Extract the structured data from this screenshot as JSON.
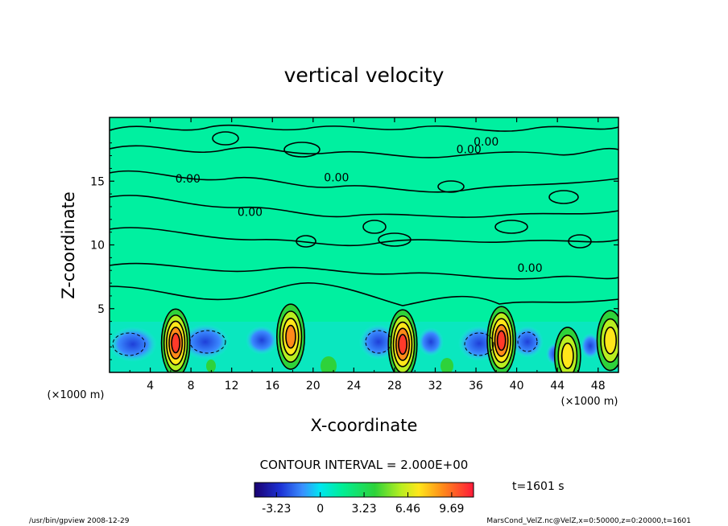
{
  "chart_data": {
    "type": "heatmap",
    "title": "vertical velocity",
    "xlabel": "X-coordinate",
    "ylabel": "Z-coordinate",
    "x_unit": "(×1000 m)",
    "y_unit": "(×1000 m)",
    "xlim": [
      0,
      50
    ],
    "ylim": [
      0,
      20
    ],
    "x_ticks": [
      4,
      8,
      12,
      16,
      20,
      24,
      28,
      32,
      36,
      40,
      44,
      48
    ],
    "y_ticks": [
      5,
      10,
      15
    ],
    "contour_labels": [
      {
        "x": 37.0,
        "z": 18.1,
        "text": "0.00"
      },
      {
        "x": 35.3,
        "z": 17.5,
        "text": "0.00"
      },
      {
        "x": 7.7,
        "z": 15.2,
        "text": "0.00"
      },
      {
        "x": 22.3,
        "z": 15.3,
        "text": "0.00"
      },
      {
        "x": 13.8,
        "z": 12.6,
        "text": "0.00"
      },
      {
        "x": 41.3,
        "z": 8.2,
        "text": "0.00"
      }
    ],
    "updrafts": [
      {
        "x": 6.5,
        "z": 2.3,
        "peak": 9.0
      },
      {
        "x": 17.8,
        "z": 2.8,
        "peak": 8.0
      },
      {
        "x": 28.8,
        "z": 2.2,
        "peak": 9.4
      },
      {
        "x": 38.5,
        "z": 2.5,
        "peak": 9.0
      },
      {
        "x": 45.0,
        "z": 1.3,
        "peak": 5.2
      },
      {
        "x": 49.2,
        "z": 2.5,
        "peak": 6.2
      }
    ],
    "contour_interval_label": "CONTOUR INTERVAL = 2.000E+00",
    "colorbar": {
      "ticks": [
        "-3.23",
        "0",
        "3.23",
        "6.46",
        "9.69"
      ],
      "min": -4.85,
      "max": 11.3
    },
    "time_label": "t=1601 s"
  },
  "footer": {
    "left": "/usr/bin/gpview   2008-12-29",
    "right": "MarsCond_VelZ.nc@VelZ,x=0:50000,z=0:20000,t=1601"
  }
}
